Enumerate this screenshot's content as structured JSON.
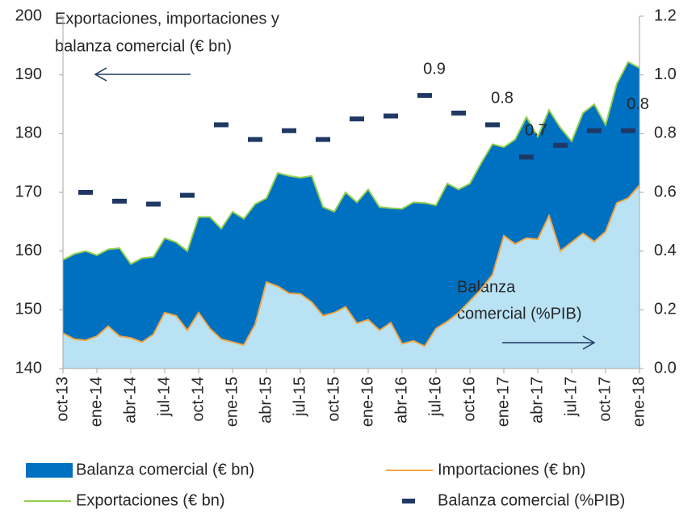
{
  "chart_data": {
    "type": "area",
    "title": [
      "Exportaciones, importaciones y",
      "balanza comercial (€ bn)"
    ],
    "annotation": [
      "Balanza",
      "comercial (%PIB)"
    ],
    "categories": [
      "oct-13",
      null,
      null,
      "ene-14",
      null,
      null,
      "abr-14",
      null,
      null,
      "jul-14",
      null,
      null,
      "oct-14",
      null,
      null,
      "ene-15",
      null,
      null,
      "abr-15",
      null,
      null,
      "jul-15",
      null,
      null,
      "oct-15",
      null,
      null,
      "ene-16",
      null,
      null,
      "abr-16",
      null,
      null,
      "jul-16",
      null,
      null,
      "oct-16",
      null,
      null,
      "ene-17",
      null,
      null,
      "abr-17",
      null,
      null,
      "jul-17",
      null,
      null,
      "oct-17",
      null,
      null,
      "ene-18"
    ],
    "series": [
      {
        "name": "Balanza comercial (€ bn)",
        "color": "#0070c0"
      },
      {
        "name": "Importaciones  (€ bn)",
        "color": "#f4a742",
        "fill": "#b9e3f5",
        "values": [
          146,
          145,
          144.8,
          145.5,
          147.2,
          145.5,
          145.2,
          144.5,
          145.8,
          149.5,
          149,
          146.5,
          149.5,
          146.8,
          145,
          144.5,
          144,
          147.5,
          154.7,
          154,
          152.8,
          152.7,
          151.3,
          149,
          149.5,
          150.5,
          147.7,
          148.3,
          146.5,
          147.8,
          144.2,
          144.7,
          143.8,
          146.8,
          148,
          149.5,
          151.5,
          153.5,
          156,
          162.6,
          161.2,
          162.2,
          162,
          166,
          160,
          161.5,
          163,
          161.6,
          163.3,
          168.2,
          169,
          171.2
        ]
      },
      {
        "name": "Exportaciones (€ bn)",
        "color": "#92d050",
        "values": [
          158.5,
          159.5,
          160,
          159.3,
          160.3,
          160.5,
          157.8,
          158.8,
          159,
          162.2,
          161.5,
          160,
          165.8,
          165.8,
          163.8,
          166.7,
          165.5,
          168,
          169,
          173.3,
          172.8,
          172.5,
          172.8,
          167.5,
          166.7,
          170,
          168.3,
          170.5,
          167.5,
          167.3,
          167.2,
          168.3,
          168.2,
          167.8,
          171.5,
          170.5,
          171.5,
          175,
          178.2,
          177.7,
          179,
          182.8,
          179.5,
          184,
          181,
          178.7,
          183.5,
          185,
          181.5,
          188.5,
          192.2,
          191.2
        ]
      },
      {
        "name": "Balanza comercial (%PIB)",
        "color": "#1f3864",
        "axis": "y2",
        "values": [
          null,
          null,
          0.6,
          null,
          null,
          0.57,
          null,
          null,
          0.56,
          null,
          null,
          0.59,
          null,
          null,
          0.83,
          null,
          null,
          0.78,
          null,
          null,
          0.81,
          null,
          null,
          0.78,
          null,
          null,
          0.85,
          null,
          null,
          0.86,
          null,
          null,
          0.93,
          null,
          null,
          0.87,
          null,
          null,
          0.83,
          null,
          null,
          0.72,
          null,
          null,
          0.76,
          null,
          null,
          0.81,
          null,
          null,
          0.81,
          null
        ],
        "value_labels": [
          null,
          null,
          null,
          null,
          null,
          null,
          null,
          null,
          null,
          null,
          null,
          null,
          null,
          null,
          null,
          null,
          null,
          null,
          null,
          null,
          null,
          null,
          null,
          null,
          null,
          null,
          null,
          null,
          null,
          null,
          null,
          null,
          "0.9",
          null,
          null,
          null,
          null,
          null,
          "0.8",
          null,
          null,
          "0.7",
          null,
          null,
          null,
          null,
          null,
          null,
          null,
          null,
          "0.8",
          null
        ]
      }
    ],
    "ylim": [
      140,
      200
    ],
    "yticks": [
      140,
      150,
      160,
      170,
      180,
      190,
      200
    ],
    "y2lim": [
      0,
      1.2
    ],
    "y2ticks": [
      {
        "value": 0,
        "label": "0.0"
      },
      0.2,
      0.4,
      0.6,
      0.8,
      {
        "value": 1,
        "label": "1.0"
      },
      1.2
    ]
  }
}
